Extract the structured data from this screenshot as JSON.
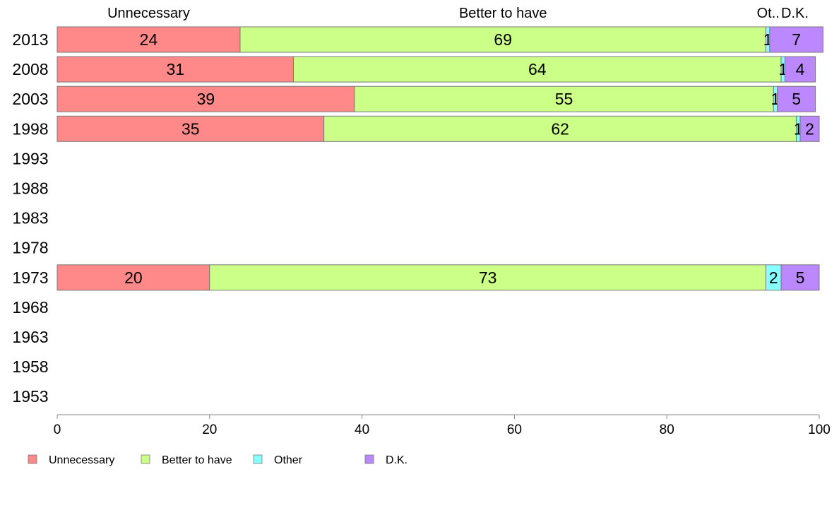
{
  "chart_data": {
    "type": "bar",
    "orientation": "horizontal",
    "stacked": true,
    "categories": [
      "2013",
      "2008",
      "2003",
      "1998",
      "1993",
      "1988",
      "1983",
      "1978",
      "1973",
      "1968",
      "1963",
      "1958",
      "1953"
    ],
    "series": [
      {
        "name": "Unnecessary",
        "color": "#ff8888",
        "values": [
          24,
          31,
          39,
          35,
          null,
          null,
          null,
          null,
          20,
          null,
          null,
          null,
          null
        ],
        "labels": [
          "24",
          "31",
          "39",
          "35",
          "",
          "",
          "",
          "",
          "20",
          "",
          "",
          "",
          ""
        ]
      },
      {
        "name": "Better to have",
        "color": "#ccff88",
        "values": [
          69,
          64,
          55,
          62,
          null,
          null,
          null,
          null,
          73,
          null,
          null,
          null,
          null
        ],
        "labels": [
          "69",
          "64",
          "55",
          "62",
          "",
          "",
          "",
          "",
          "73",
          "",
          "",
          "",
          ""
        ]
      },
      {
        "name": "Other",
        "color": "#88ffff",
        "values": [
          0.5,
          0.5,
          0.5,
          0.5,
          null,
          null,
          null,
          null,
          2,
          null,
          null,
          null,
          null
        ],
        "labels": [
          "1",
          "1",
          "1",
          "1",
          "",
          "",
          "",
          "",
          "2",
          "",
          "",
          "",
          ""
        ]
      },
      {
        "name": "D.K.",
        "color": "#bb88ff",
        "values": [
          7,
          4,
          5,
          2.5,
          null,
          null,
          null,
          null,
          5,
          null,
          null,
          null,
          null
        ],
        "labels": [
          "7",
          "4",
          "5",
          "2",
          "",
          "",
          "",
          "",
          "5",
          "",
          "",
          "",
          ""
        ]
      }
    ],
    "column_headers": [
      {
        "text": "Unnecessary",
        "at": 12
      },
      {
        "text": "Better to have",
        "at": 58.5
      },
      {
        "text": "Ot..",
        "at": 93.3
      },
      {
        "text": "D.K.",
        "at": 96.8
      }
    ],
    "xlim": [
      0,
      100
    ],
    "xticks": [
      0,
      20,
      40,
      60,
      80,
      100
    ],
    "title": "",
    "xlabel": "",
    "ylabel": "",
    "grid": false,
    "legend": "bottom-left"
  }
}
